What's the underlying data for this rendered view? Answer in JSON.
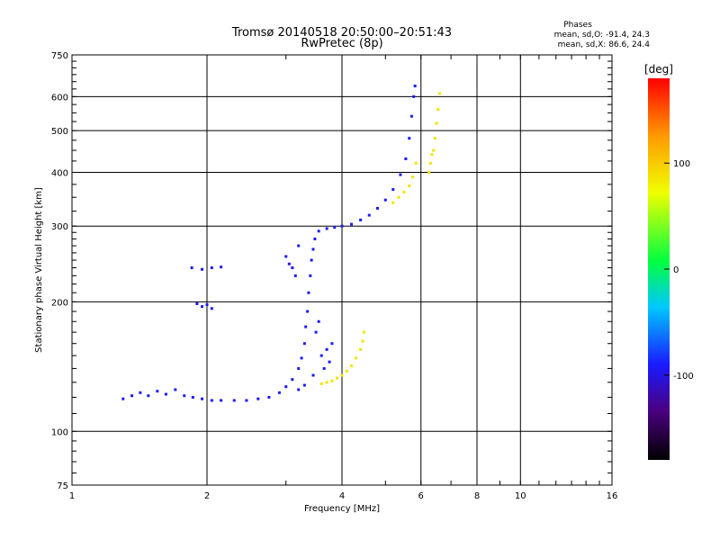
{
  "header": {
    "title": "Tromsø 20140518 20:50:00–20:51:43",
    "subtitle": "RwPretec (8p)",
    "stats_title": "Phases",
    "stats_o": "mean, sd,O: -91.4, 24.3",
    "stats_x": "mean, sd,X: 86.6, 24.4"
  },
  "chart_data": {
    "type": "scatter",
    "title": "Tromsø 20140518 20:50:00–20:51:43",
    "subtitle": "RwPretec (8p)",
    "xlabel": "Frequency [MHz]",
    "ylabel": "Stationary phase Virtual Height [km]",
    "x_scale": "log",
    "y_scale": "log",
    "xlim": [
      1,
      16
    ],
    "ylim": [
      75,
      750
    ],
    "x_ticks": [
      1,
      2,
      4,
      6,
      8,
      10,
      16
    ],
    "y_ticks": [
      75,
      100,
      200,
      300,
      400,
      500,
      600,
      750
    ],
    "grid": true,
    "colorbar": {
      "label": "[deg]",
      "range": [
        -180,
        180
      ],
      "ticks": [
        -100,
        0,
        100
      ],
      "colormap": "rainbow (black-purple-blue-cyan-green-yellow-orange-red)"
    },
    "series": [
      {
        "name": "O",
        "color_value": -91.4,
        "points": [
          [
            1.3,
            119
          ],
          [
            1.36,
            121
          ],
          [
            1.42,
            123
          ],
          [
            1.48,
            121
          ],
          [
            1.55,
            124
          ],
          [
            1.62,
            122
          ],
          [
            1.7,
            125
          ],
          [
            1.78,
            121
          ],
          [
            1.86,
            120
          ],
          [
            1.95,
            119
          ],
          [
            2.05,
            118
          ],
          [
            2.15,
            118
          ],
          [
            2.3,
            118
          ],
          [
            2.45,
            118
          ],
          [
            2.6,
            119
          ],
          [
            2.75,
            120
          ],
          [
            2.9,
            123
          ],
          [
            3.0,
            127
          ],
          [
            3.1,
            132
          ],
          [
            3.2,
            140
          ],
          [
            3.25,
            148
          ],
          [
            3.3,
            160
          ],
          [
            3.32,
            175
          ],
          [
            3.35,
            190
          ],
          [
            3.37,
            210
          ],
          [
            3.4,
            230
          ],
          [
            3.42,
            250
          ],
          [
            3.45,
            265
          ],
          [
            3.48,
            280
          ],
          [
            3.55,
            292
          ],
          [
            3.7,
            296
          ],
          [
            3.85,
            298
          ],
          [
            4.0,
            300
          ],
          [
            4.2,
            303
          ],
          [
            4.4,
            310
          ],
          [
            4.6,
            318
          ],
          [
            4.8,
            330
          ],
          [
            5.0,
            345
          ],
          [
            5.2,
            365
          ],
          [
            5.4,
            395
          ],
          [
            5.55,
            430
          ],
          [
            5.65,
            480
          ],
          [
            5.72,
            540
          ],
          [
            5.78,
            600
          ],
          [
            5.82,
            635
          ],
          [
            1.85,
            240
          ],
          [
            1.95,
            238
          ],
          [
            2.05,
            240
          ],
          [
            2.15,
            241
          ],
          [
            1.9,
            198
          ],
          [
            1.95,
            195
          ],
          [
            2.0,
            197
          ],
          [
            2.05,
            193
          ],
          [
            3.0,
            255
          ],
          [
            3.05,
            245
          ],
          [
            3.1,
            240
          ],
          [
            3.15,
            230
          ],
          [
            3.2,
            270
          ],
          [
            3.6,
            150
          ],
          [
            3.65,
            140
          ],
          [
            3.7,
            155
          ],
          [
            3.75,
            145
          ],
          [
            3.8,
            160
          ],
          [
            3.5,
            170
          ],
          [
            3.55,
            180
          ],
          [
            3.45,
            135
          ],
          [
            3.3,
            128
          ],
          [
            3.2,
            125
          ]
        ]
      },
      {
        "name": "X",
        "color_value": 86.6,
        "points": [
          [
            3.6,
            129
          ],
          [
            3.7,
            130
          ],
          [
            3.8,
            131
          ],
          [
            3.9,
            133
          ],
          [
            4.0,
            135
          ],
          [
            4.1,
            138
          ],
          [
            4.2,
            142
          ],
          [
            4.3,
            148
          ],
          [
            4.4,
            155
          ],
          [
            4.45,
            162
          ],
          [
            4.48,
            170
          ],
          [
            5.2,
            340
          ],
          [
            5.35,
            350
          ],
          [
            5.5,
            360
          ],
          [
            5.65,
            372
          ],
          [
            5.75,
            390
          ],
          [
            5.85,
            420
          ],
          [
            6.3,
            420
          ],
          [
            6.4,
            450
          ],
          [
            6.45,
            480
          ],
          [
            6.5,
            520
          ],
          [
            6.55,
            560
          ],
          [
            6.6,
            610
          ],
          [
            6.35,
            440
          ],
          [
            6.25,
            400
          ]
        ]
      }
    ]
  }
}
